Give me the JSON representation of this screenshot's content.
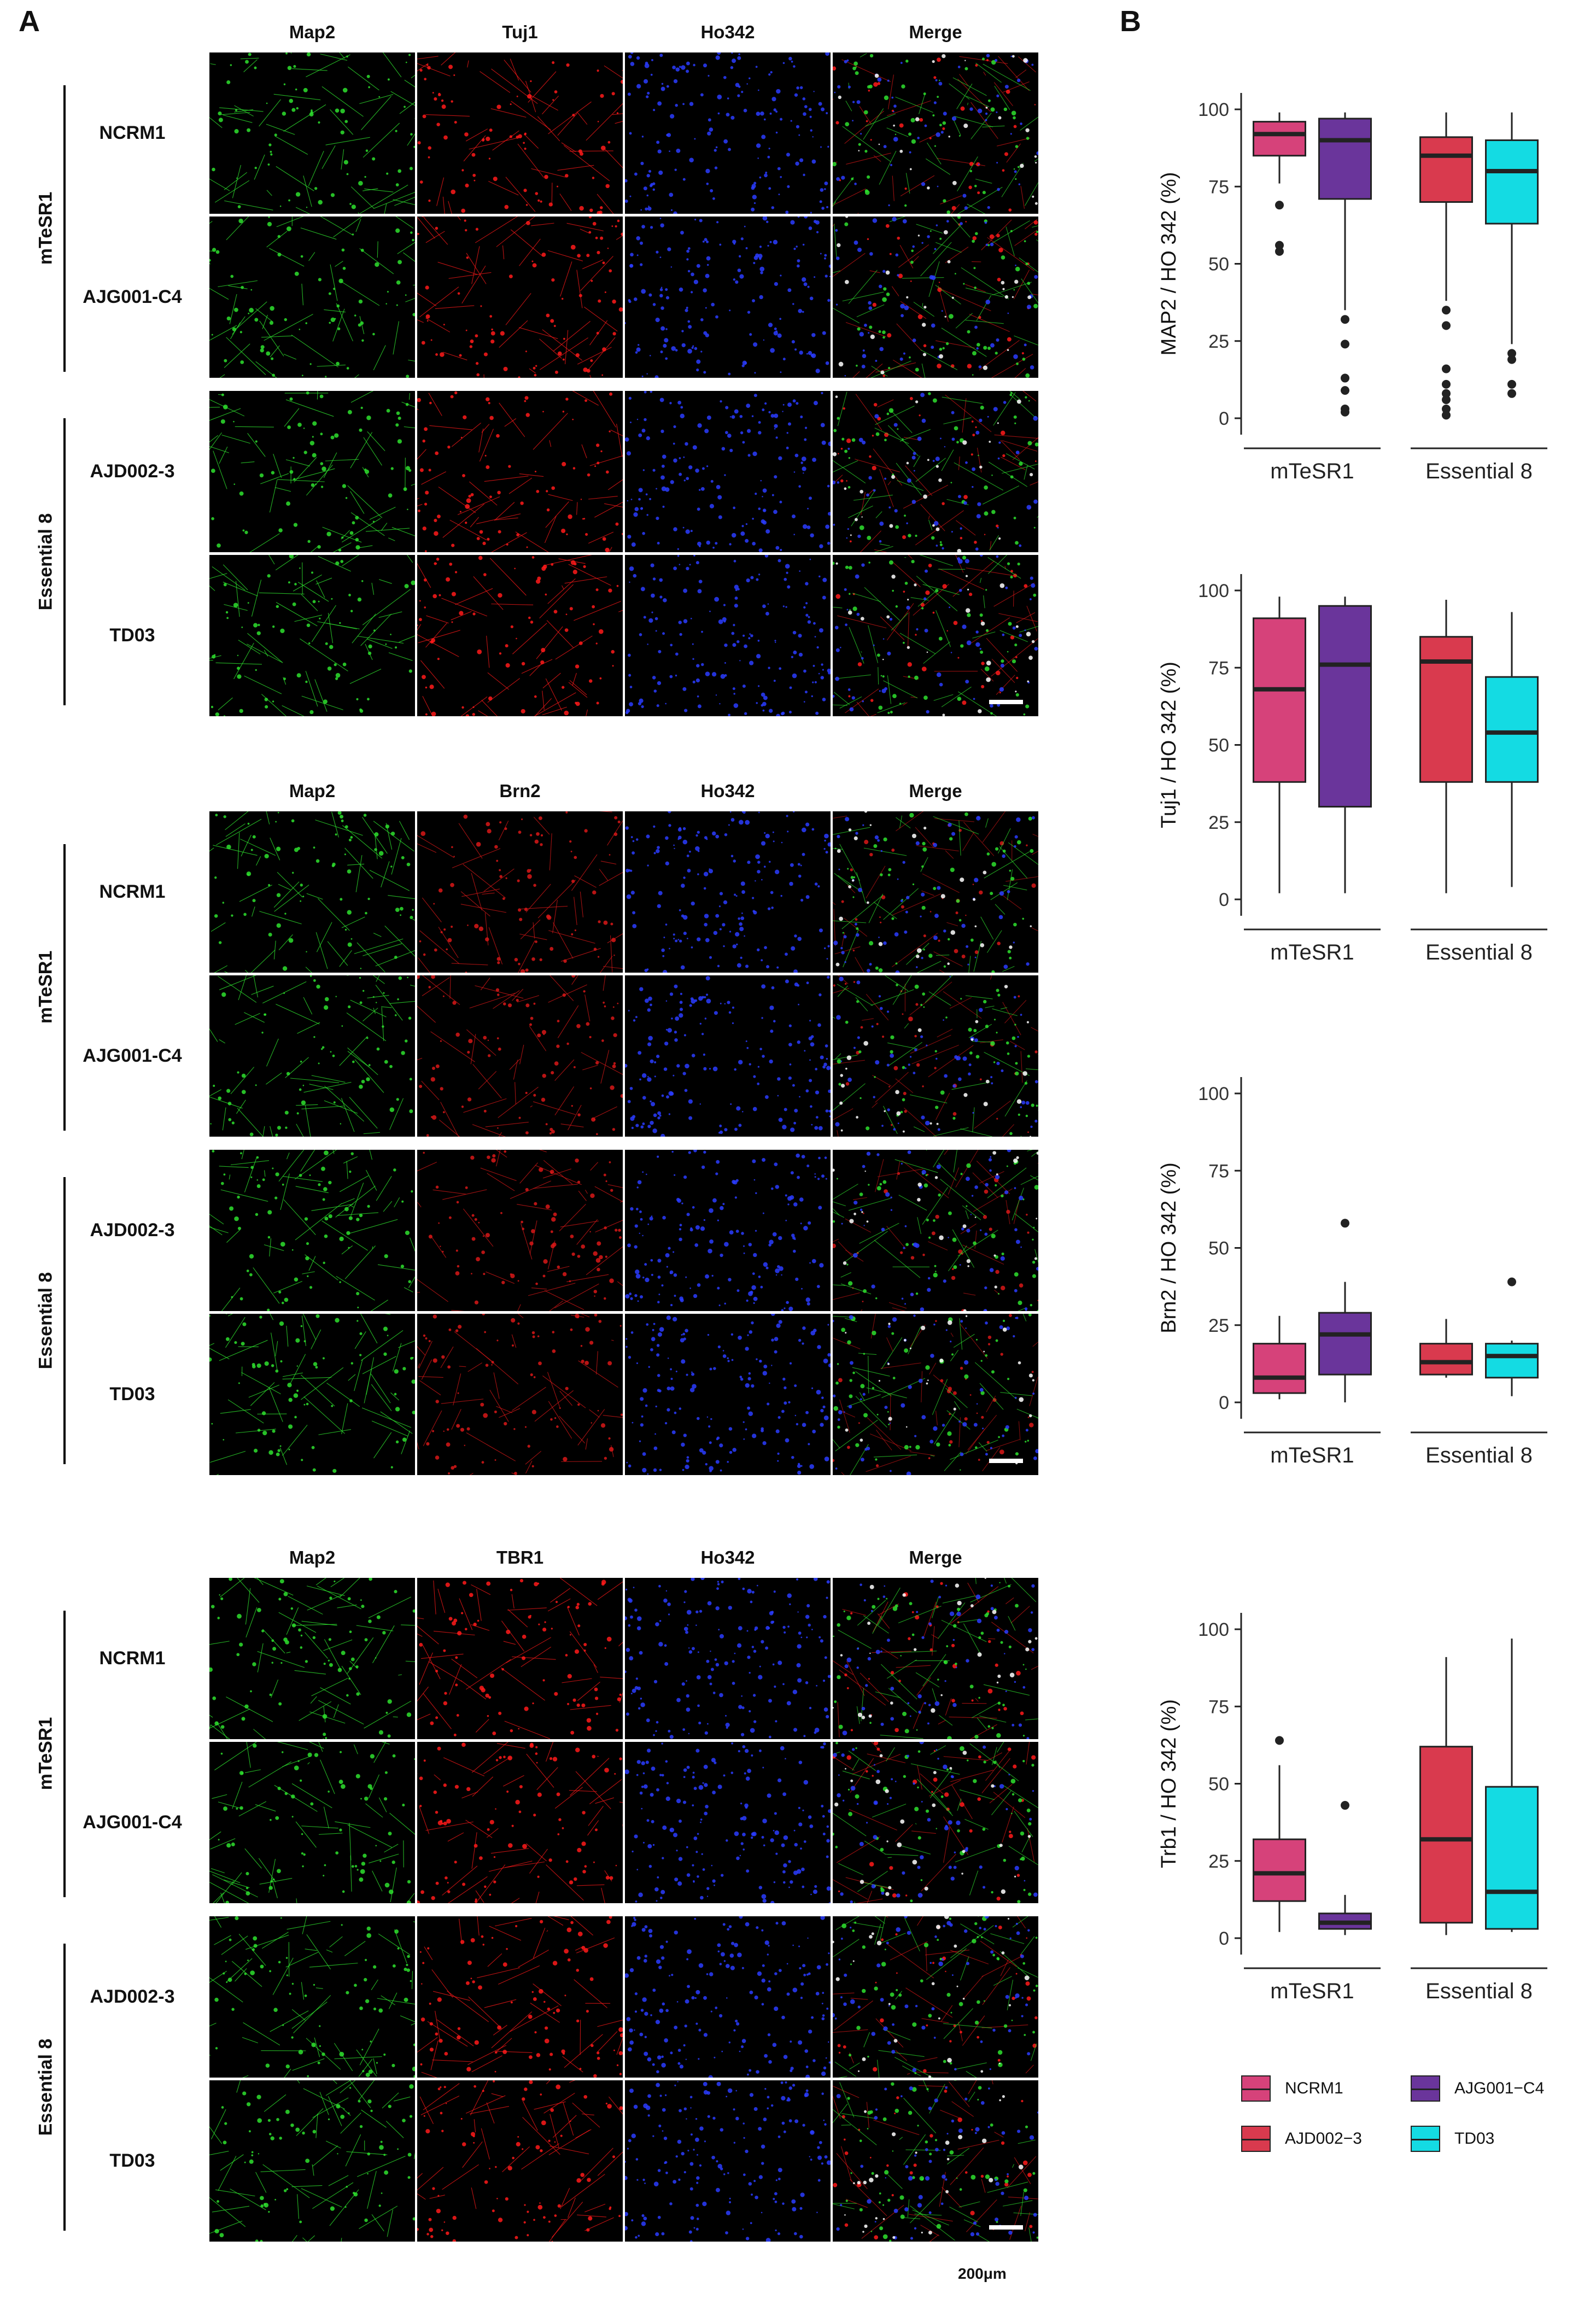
{
  "panel_labels": {
    "a": "A",
    "b": "B"
  },
  "image_blocks": [
    {
      "headers": [
        "Map2",
        "Tuj1",
        "Ho342",
        "Merge"
      ],
      "stain2_color": "#ff1a1a",
      "groups": [
        {
          "label": "mTeSR1",
          "rows": [
            "NCRM1",
            "AJG001-C4"
          ]
        },
        {
          "label": "Essential 8",
          "rows": [
            "AJD002-3",
            "TD03"
          ]
        }
      ]
    },
    {
      "headers": [
        "Map2",
        "Brn2",
        "Ho342",
        "Merge"
      ],
      "stain2_color": "#d81818",
      "groups": [
        {
          "label": "mTeSR1",
          "rows": [
            "NCRM1",
            "AJG001-C4"
          ]
        },
        {
          "label": "Essential 8",
          "rows": [
            "AJD002-3",
            "TD03"
          ]
        }
      ]
    },
    {
      "headers": [
        "Map2",
        "TBR1",
        "Ho342",
        "Merge"
      ],
      "stain2_color": "#ff1a1a",
      "groups": [
        {
          "label": "mTeSR1",
          "rows": [
            "NCRM1",
            "AJG001-C4"
          ]
        },
        {
          "label": "Essential 8",
          "rows": [
            "AJD002-3",
            "TD03"
          ]
        }
      ]
    }
  ],
  "scale_bar_label": "200μm",
  "legend": [
    {
      "name": "NCRM1",
      "color": "#d6427a"
    },
    {
      "name": "AJG001−C4",
      "color": "#6a359b"
    },
    {
      "name": "AJD002−3",
      "color": "#d93a4e"
    },
    {
      "name": "TD03",
      "color": "#14dbe3"
    }
  ],
  "chart_data": [
    {
      "type": "box",
      "ylabel": "MAP2 / HO 342 (%)",
      "ylim": [
        0,
        100
      ],
      "yticks": [
        0,
        25,
        50,
        75,
        100
      ],
      "categories": [
        "mTeSR1",
        "Essential 8"
      ],
      "series": [
        {
          "name": "NCRM1",
          "group": "mTeSR1",
          "min": 76,
          "q1": 85,
          "median": 92,
          "q3": 96,
          "max": 99,
          "outliers": [
            69,
            56,
            54
          ]
        },
        {
          "name": "AJG001−C4",
          "group": "mTeSR1",
          "min": 35,
          "q1": 71,
          "median": 90,
          "q3": 97,
          "max": 99,
          "outliers": [
            32,
            24,
            13,
            9,
            3,
            2
          ]
        },
        {
          "name": "AJD002−3",
          "group": "Essential 8",
          "min": 38,
          "q1": 70,
          "median": 85,
          "q3": 91,
          "max": 99,
          "outliers": [
            35,
            30,
            16,
            11,
            8,
            6,
            3,
            1
          ]
        },
        {
          "name": "TD03",
          "group": "Essential 8",
          "min": 24,
          "q1": 63,
          "median": 80,
          "q3": 90,
          "max": 99,
          "outliers": [
            21,
            19,
            11,
            8
          ]
        }
      ]
    },
    {
      "type": "box",
      "ylabel": "Tuj1 / HO 342 (%)",
      "ylim": [
        0,
        100
      ],
      "yticks": [
        0,
        25,
        50,
        75,
        100
      ],
      "categories": [
        "mTeSR1",
        "Essential 8"
      ],
      "series": [
        {
          "name": "NCRM1",
          "group": "mTeSR1",
          "min": 2,
          "q1": 38,
          "median": 68,
          "q3": 91,
          "max": 98,
          "outliers": []
        },
        {
          "name": "AJG001−C4",
          "group": "mTeSR1",
          "min": 2,
          "q1": 30,
          "median": 76,
          "q3": 95,
          "max": 98,
          "outliers": []
        },
        {
          "name": "AJD002−3",
          "group": "Essential 8",
          "min": 2,
          "q1": 38,
          "median": 77,
          "q3": 85,
          "max": 97,
          "outliers": []
        },
        {
          "name": "TD03",
          "group": "Essential 8",
          "min": 4,
          "q1": 38,
          "median": 54,
          "q3": 72,
          "max": 93,
          "outliers": []
        }
      ]
    },
    {
      "type": "box",
      "ylabel": "Brn2 / HO 342 (%)",
      "ylim": [
        0,
        100
      ],
      "yticks": [
        0,
        25,
        50,
        75,
        100
      ],
      "categories": [
        "mTeSR1",
        "Essential 8"
      ],
      "series": [
        {
          "name": "NCRM1",
          "group": "mTeSR1",
          "min": 1,
          "q1": 3,
          "median": 8,
          "q3": 19,
          "max": 28,
          "outliers": []
        },
        {
          "name": "AJG001−C4",
          "group": "mTeSR1",
          "min": 0,
          "q1": 9,
          "median": 22,
          "q3": 29,
          "max": 39,
          "outliers": [
            58
          ]
        },
        {
          "name": "AJD002−3",
          "group": "Essential 8",
          "min": 8,
          "q1": 9,
          "median": 13,
          "q3": 19,
          "max": 27,
          "outliers": []
        },
        {
          "name": "TD03",
          "group": "Essential 8",
          "min": 2,
          "q1": 8,
          "median": 15,
          "q3": 19,
          "max": 20,
          "outliers": [
            39
          ]
        }
      ]
    },
    {
      "type": "box",
      "ylabel": "Trb1 / HO 342 (%)",
      "ylim": [
        0,
        100
      ],
      "yticks": [
        0,
        25,
        50,
        75,
        100
      ],
      "categories": [
        "mTeSR1",
        "Essential 8"
      ],
      "series": [
        {
          "name": "NCRM1",
          "group": "mTeSR1",
          "min": 2,
          "q1": 12,
          "median": 21,
          "q3": 32,
          "max": 56,
          "outliers": [
            64
          ]
        },
        {
          "name": "AJG001−C4",
          "group": "mTeSR1",
          "min": 1,
          "q1": 3,
          "median": 5,
          "q3": 8,
          "max": 14,
          "outliers": [
            43
          ]
        },
        {
          "name": "AJD002−3",
          "group": "Essential 8",
          "min": 1,
          "q1": 5,
          "median": 32,
          "q3": 62,
          "max": 91,
          "outliers": []
        },
        {
          "name": "TD03",
          "group": "Essential 8",
          "min": 2,
          "q1": 3,
          "median": 15,
          "q3": 49,
          "max": 97,
          "outliers": []
        }
      ]
    }
  ]
}
